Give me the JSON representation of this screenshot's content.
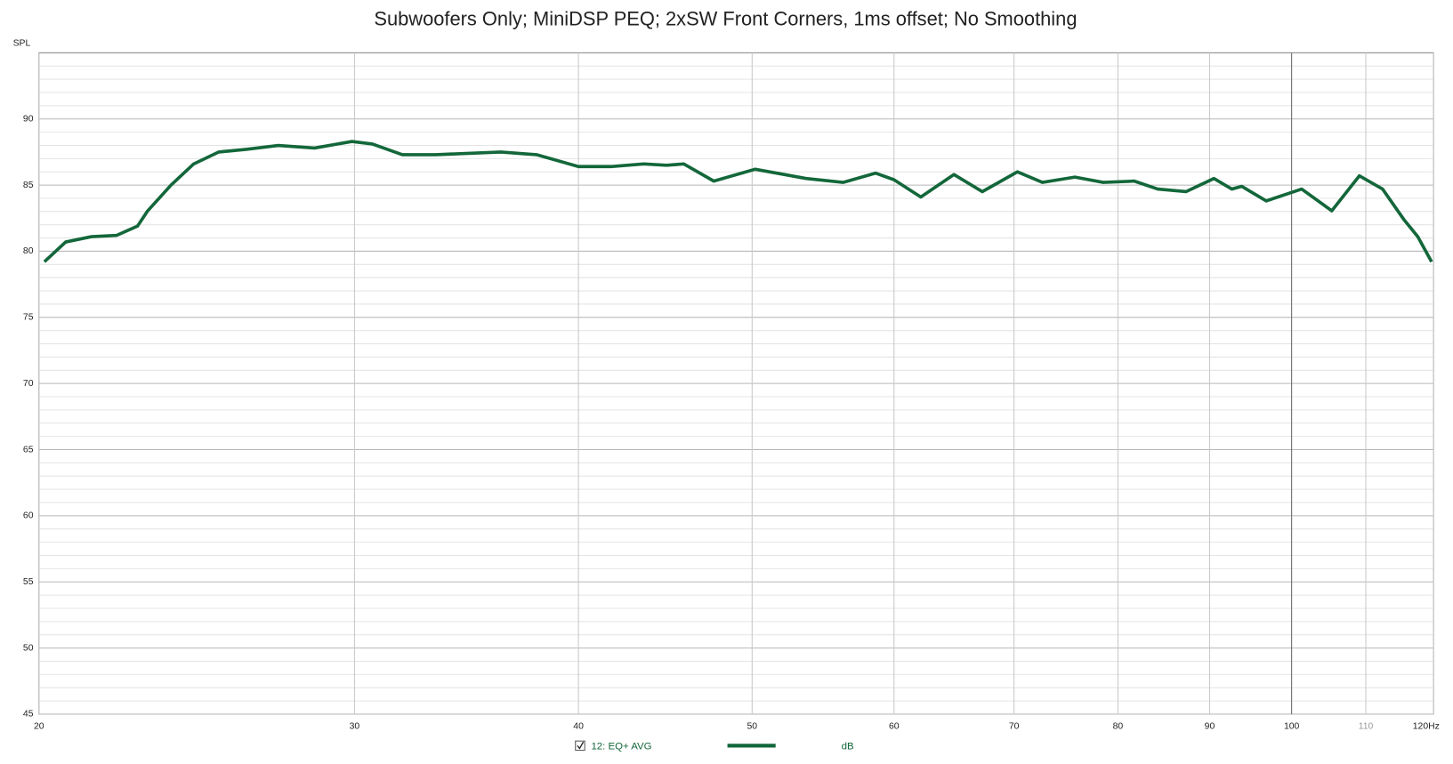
{
  "chart_data": {
    "type": "line",
    "title": "Subwoofers Only; MiniDSP PEQ; 2xSW Front Corners, 1ms offset; No Smoothing",
    "ylabel": "SPL",
    "xscale": "log",
    "grid": true,
    "xlim": [
      20,
      120
    ],
    "ylim": [
      45,
      95
    ],
    "xticks": [
      20,
      30,
      40,
      50,
      60,
      70,
      80,
      90,
      100,
      110,
      {
        "value": 120,
        "label": "120Hz"
      }
    ],
    "yticks": [
      45,
      50,
      55,
      60,
      65,
      70,
      75,
      80,
      85,
      90
    ],
    "yminorticks": [
      46,
      47,
      48,
      49,
      51,
      52,
      53,
      54,
      56,
      57,
      58,
      59,
      61,
      62,
      63,
      64,
      66,
      67,
      68,
      69,
      71,
      72,
      73,
      74,
      76,
      77,
      78,
      79,
      81,
      82,
      83,
      84,
      86,
      87,
      88,
      89,
      91,
      92,
      93,
      94
    ],
    "x": [
      20.14,
      20.7,
      21.4,
      22.1,
      22.7,
      23.0,
      23.7,
      24.4,
      25.2,
      26.1,
      27.2,
      28.5,
      29.9,
      30.7,
      31.9,
      33.3,
      36.2,
      37.9,
      40.0,
      41.7,
      43.5,
      44.8,
      45.8,
      47.6,
      50.2,
      53.6,
      56.2,
      58.6,
      60.0,
      62.1,
      64.8,
      67.2,
      70.3,
      72.6,
      75.7,
      78.5,
      81.7,
      84.2,
      87.3,
      90.5,
      92.6,
      93.8,
      96.8,
      101.3,
      105.3,
      109.1,
      112.4,
      115.5,
      117.6,
      119.7
    ],
    "series": [
      {
        "name": "12: EQ+ AVG",
        "unit": "dB",
        "color": "#13673a",
        "values": [
          79.2,
          80.7,
          81.1,
          81.2,
          81.9,
          83.05,
          85.0,
          86.6,
          87.5,
          87.7,
          88.0,
          87.8,
          88.3,
          88.1,
          87.3,
          87.3,
          87.5,
          87.3,
          86.4,
          86.4,
          86.6,
          86.5,
          86.6,
          85.3,
          86.2,
          85.5,
          85.2,
          85.9,
          85.4,
          84.1,
          85.8,
          84.5,
          86.0,
          85.2,
          85.6,
          85.2,
          85.3,
          84.7,
          84.5,
          85.5,
          84.7,
          84.9,
          83.8,
          84.7,
          83.05,
          85.7,
          84.7,
          82.4,
          81.1,
          79.2
        ]
      }
    ]
  }
}
